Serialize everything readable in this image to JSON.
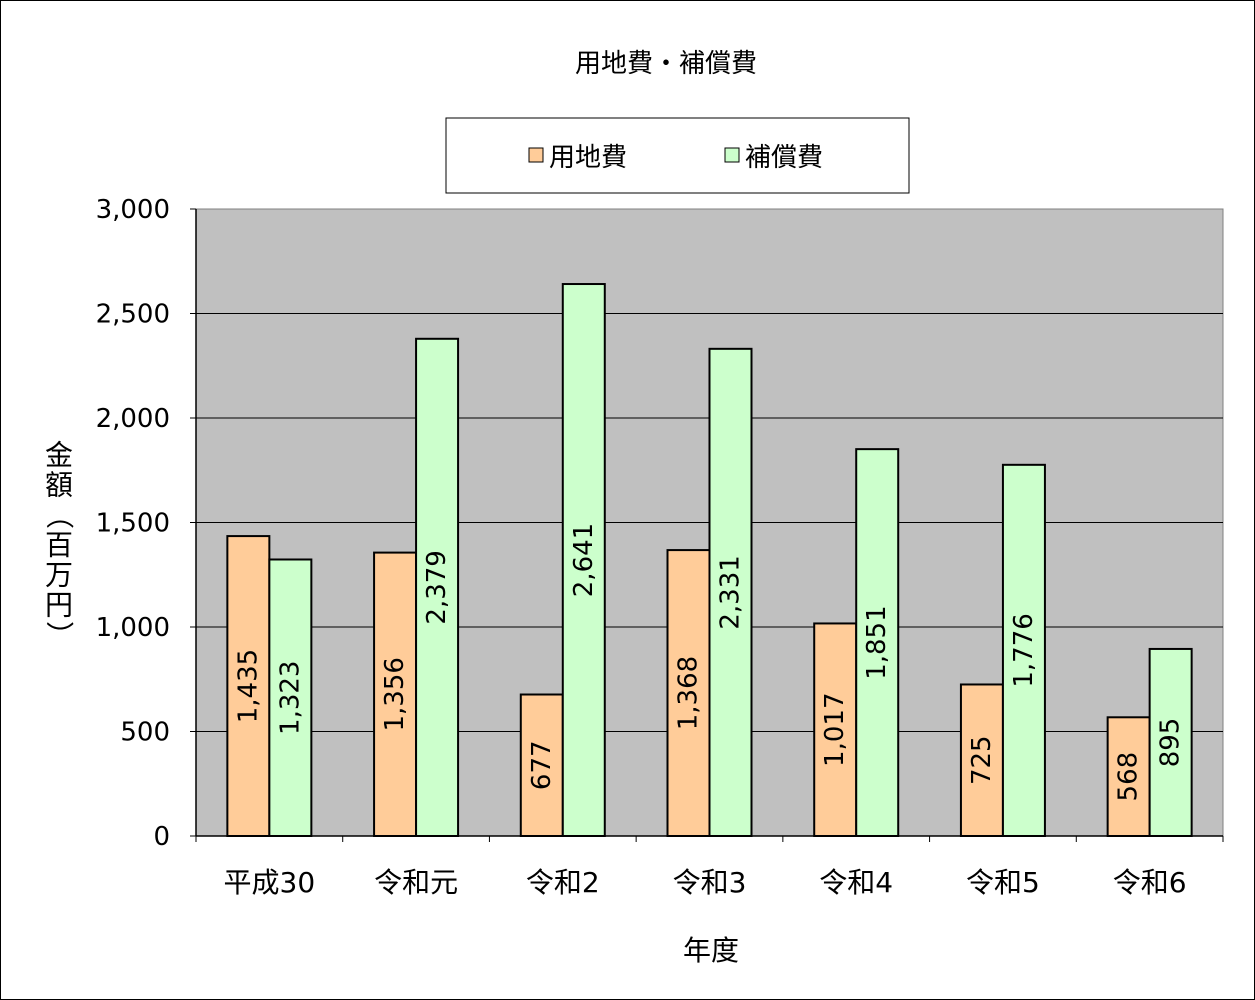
{
  "chart_data": {
    "type": "bar",
    "title": "用地費・補償費",
    "xlabel": "年度",
    "ylabel": "金額（百万円）",
    "categories": [
      "平成30",
      "令和元",
      "令和2",
      "令和3",
      "令和4",
      "令和5",
      "令和6"
    ],
    "series": [
      {
        "name": "用地費",
        "values": [
          1435,
          1356,
          677,
          1368,
          1017,
          725,
          568
        ],
        "color": "#FFCC99"
      },
      {
        "name": "補償費",
        "values": [
          1323,
          2379,
          2641,
          2331,
          1851,
          1776,
          895
        ],
        "color": "#CCFFCC"
      }
    ],
    "data_labels": [
      [
        "1,435",
        "1,356",
        "677",
        "1,368",
        "1,017",
        "725",
        "568"
      ],
      [
        "1,323",
        "2,379",
        "2,641",
        "2,331",
        "1,851",
        "1,776",
        "895"
      ]
    ],
    "ylim": [
      0,
      3000
    ],
    "yticks": [
      0,
      500,
      1000,
      1500,
      2000,
      2500,
      3000
    ],
    "ytick_labels": [
      "0",
      "500",
      "1,000",
      "1,500",
      "2,000",
      "2,500",
      "3,000"
    ],
    "grid": true,
    "plot_background": "#C0C0C0",
    "legend_position": "top-center"
  }
}
